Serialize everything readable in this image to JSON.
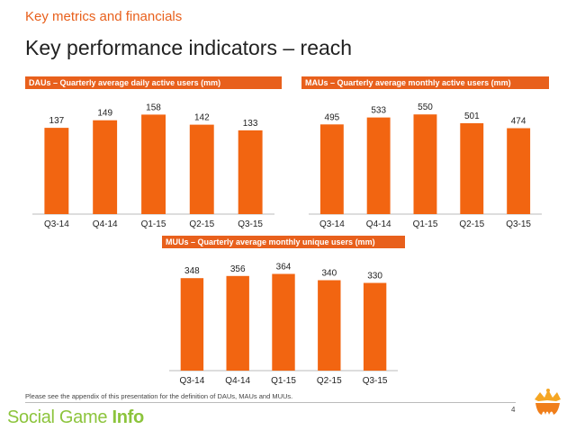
{
  "header": {
    "section_title": "Key metrics and financials",
    "page_title": "Key performance indicators – reach"
  },
  "colors": {
    "accent": "#e8601c",
    "bar": "#f26511",
    "brand_green": "#8cc43c"
  },
  "chart_data": [
    {
      "type": "bar",
      "title": "DAUs – Quarterly average daily active users (mm)",
      "categories": [
        "Q3-14",
        "Q4-14",
        "Q1-15",
        "Q2-15",
        "Q3-15"
      ],
      "values": [
        137,
        149,
        158,
        142,
        133
      ],
      "ylim": [
        0,
        190
      ],
      "grid": false,
      "legend": "none"
    },
    {
      "type": "bar",
      "title": "MAUs – Quarterly average monthly active users (mm)",
      "categories": [
        "Q3-14",
        "Q4-14",
        "Q1-15",
        "Q2-15",
        "Q3-15"
      ],
      "values": [
        495,
        533,
        550,
        501,
        474
      ],
      "ylim": [
        0,
        660
      ],
      "grid": false,
      "legend": "none"
    },
    {
      "type": "bar",
      "title": "MUUs – Quarterly average monthly unique users (mm)",
      "categories": [
        "Q3-14",
        "Q4-14",
        "Q1-15",
        "Q2-15",
        "Q3-15"
      ],
      "values": [
        348,
        356,
        364,
        340,
        330
      ],
      "ylim": [
        0,
        440
      ],
      "grid": false,
      "legend": "none"
    }
  ],
  "footer": {
    "footnote": "Please see the appendix of this presentation for the definition of DAUs, MAUs and MUUs.",
    "page_number": "4",
    "brand_part1": "Social Game ",
    "brand_part2": "Info",
    "logo_icon": "king-crown-logo-icon"
  }
}
